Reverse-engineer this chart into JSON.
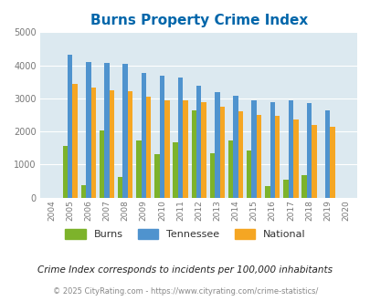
{
  "title": "Burns Property Crime Index",
  "years": [
    2004,
    2005,
    2006,
    2007,
    2008,
    2009,
    2010,
    2011,
    2012,
    2013,
    2014,
    2015,
    2016,
    2017,
    2018,
    2019,
    2020
  ],
  "burns": [
    0,
    1560,
    380,
    2020,
    640,
    1720,
    1310,
    1670,
    2650,
    1340,
    1720,
    1440,
    340,
    540,
    670,
    0,
    0
  ],
  "tennessee": [
    0,
    4320,
    4100,
    4080,
    4040,
    3780,
    3680,
    3620,
    3380,
    3190,
    3070,
    2950,
    2900,
    2950,
    2860,
    2640,
    0
  ],
  "national": [
    0,
    3450,
    3340,
    3250,
    3210,
    3050,
    2950,
    2940,
    2890,
    2740,
    2600,
    2490,
    2460,
    2370,
    2200,
    2140,
    0
  ],
  "burns_color": "#7db32b",
  "tennessee_color": "#4f93ce",
  "national_color": "#f5a623",
  "bg_color": "#dce9f0",
  "ylim": [
    0,
    5000
  ],
  "yticks": [
    0,
    1000,
    2000,
    3000,
    4000,
    5000
  ],
  "subtitle": "Crime Index corresponds to incidents per 100,000 inhabitants",
  "footer": "© 2025 CityRating.com - https://www.cityrating.com/crime-statistics/",
  "title_color": "#0066aa",
  "subtitle_color": "#222222",
  "footer_color": "#888888"
}
